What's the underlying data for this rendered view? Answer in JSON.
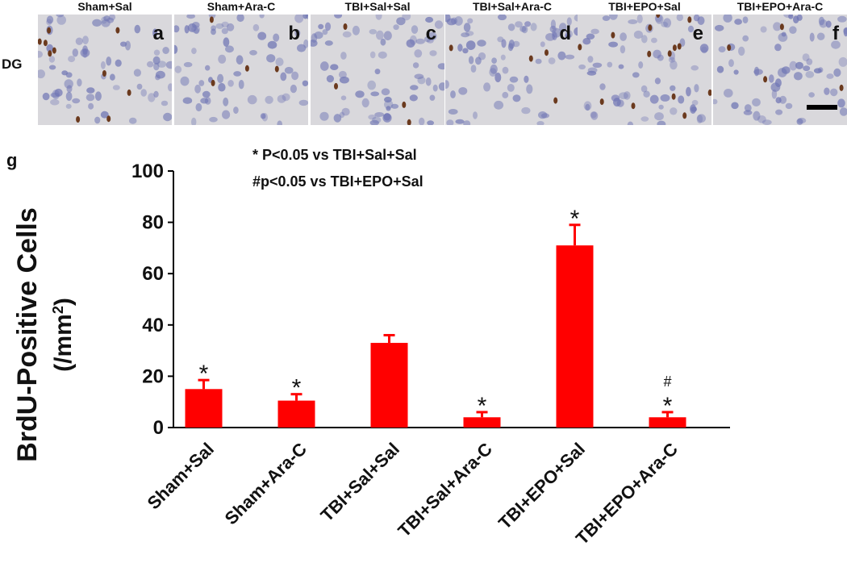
{
  "panels": [
    {
      "title": "Sham+Sal",
      "letter": "a"
    },
    {
      "title": "Sham+Ara-C",
      "letter": "b"
    },
    {
      "title": "TBI+Sal+Sal",
      "letter": "c"
    },
    {
      "title": "TBI+Sal+Ara-C",
      "letter": "d"
    },
    {
      "title": "TBI+EPO+Sal",
      "letter": "e"
    },
    {
      "title": "TBI+EPO+Ara-C",
      "letter": "f"
    }
  ],
  "row_label": "DG",
  "chart_panel_label": "g",
  "legend": [
    "* P<0.05 vs TBI+Sal+Sal",
    "#p<0.05 vs TBI+EPO+Sal"
  ],
  "colors": {
    "bar": "#ff0000",
    "tissue": "#d9d8dc",
    "nucleus": "#6f75b4",
    "stained": "#6b3a1e"
  },
  "chart_data": {
    "type": "bar",
    "categories": [
      "Sham+Sal",
      "Sham+Ara-C",
      "TBI+Sal+Sal",
      "TBI+Sal+Ara-C",
      "TBI+EPO+Sal",
      "TBI+EPO+Ara-C"
    ],
    "values": [
      15,
      10.5,
      33,
      4,
      71,
      4
    ],
    "errors": [
      3.5,
      2.5,
      3,
      2,
      8,
      2
    ],
    "annotations": [
      "*",
      "*",
      "",
      "*",
      "*",
      "*"
    ],
    "annotations_extra": [
      "",
      "",
      "",
      "",
      "",
      "#"
    ],
    "ylabel_line1": "BrdU-Positive Cells",
    "ylabel_line2": "(/mm",
    "ylabel_sup": "2",
    "ylabel_close": ")",
    "ylim": [
      0,
      100
    ],
    "yticks": [
      0,
      20,
      40,
      60,
      80,
      100
    ]
  }
}
